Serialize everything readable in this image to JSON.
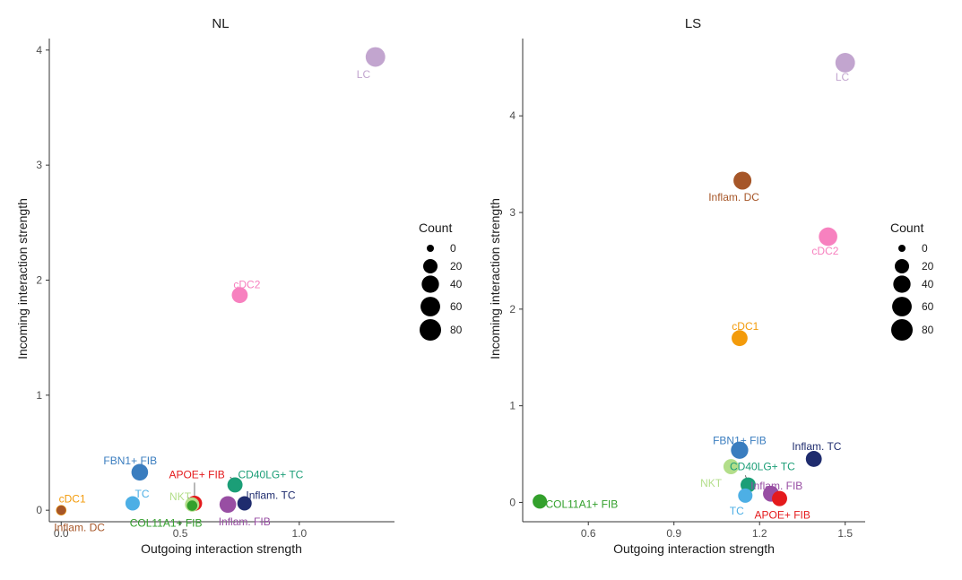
{
  "colors": {
    "cDC1": "#F39B0B",
    "Inflam. DC": "#A65628",
    "TC": "#4DAFE5",
    "FBN1+ FIB": "#3A7DBF",
    "APOE+ FIB": "#E41A1C",
    "NKT": "#B3DE8A",
    "COL11A1+ FIB": "#33A02C",
    "CD40LG+ TC": "#1B9E77",
    "Inflam. FIB": "#984EA3",
    "Inflam. TC": "#1F2C6E",
    "cDC2": "#F781BF",
    "LC": "#C2A5CF"
  },
  "chart_data": [
    {
      "type": "scatter",
      "title": "NL",
      "xlabel": "Outgoing interaction strength",
      "ylabel": "Incoming interaction strength",
      "xlim": [
        -0.05,
        1.4
      ],
      "ylim": [
        -0.1,
        4.1
      ],
      "xticks": [
        0.0,
        0.5,
        1.0
      ],
      "xtick_labels": [
        "0.0",
        "0.5",
        "1.0"
      ],
      "yticks": [
        0,
        1,
        2,
        3,
        4
      ],
      "ytick_labels": [
        "0",
        "1",
        "2",
        "3",
        "4"
      ],
      "points": [
        {
          "name": "cDC1",
          "x": 0.0,
          "y": 0.0,
          "count": 4
        },
        {
          "name": "Inflam. DC",
          "x": 0.0,
          "y": 0.0,
          "count": 2
        },
        {
          "name": "TC",
          "x": 0.3,
          "y": 0.06,
          "count": 20
        },
        {
          "name": "FBN1+ FIB",
          "x": 0.33,
          "y": 0.33,
          "count": 35
        },
        {
          "name": "APOE+ FIB",
          "x": 0.56,
          "y": 0.06,
          "count": 25
        },
        {
          "name": "NKT",
          "x": 0.55,
          "y": 0.05,
          "count": 20
        },
        {
          "name": "COL11A1+ FIB",
          "x": 0.55,
          "y": 0.04,
          "count": 4
        },
        {
          "name": "CD40LG+ TC",
          "x": 0.73,
          "y": 0.22,
          "count": 25
        },
        {
          "name": "Inflam. FIB",
          "x": 0.7,
          "y": 0.05,
          "count": 35
        },
        {
          "name": "Inflam. TC",
          "x": 0.77,
          "y": 0.06,
          "count": 20
        },
        {
          "name": "cDC2",
          "x": 0.75,
          "y": 1.87,
          "count": 30
        },
        {
          "name": "LC",
          "x": 1.32,
          "y": 3.94,
          "count": 60
        }
      ],
      "labels": [
        {
          "name": "cDC1",
          "text": "cDC1",
          "lx": -0.01,
          "ly": 0.1,
          "anchor": "start"
        },
        {
          "name": "Inflam. DC",
          "text": "Inflam. DC",
          "lx": -0.03,
          "ly": -0.15,
          "anchor": "start"
        },
        {
          "name": "TC",
          "text": "TC",
          "lx": 0.34,
          "ly": 0.14,
          "anchor": "middle"
        },
        {
          "name": "FBN1+ FIB",
          "text": "FBN1+ FIB",
          "lx": 0.29,
          "ly": 0.43,
          "anchor": "middle"
        },
        {
          "name": "APOE+ FIB",
          "text": "APOE+ FIB",
          "lx": 0.57,
          "ly": 0.31,
          "anchor": "middle"
        },
        {
          "name": "NKT",
          "text": "NKT",
          "lx": 0.5,
          "ly": 0.12,
          "anchor": "middle"
        },
        {
          "name": "COL11A1+ FIB",
          "text": "COL11A1+ FIB",
          "lx": 0.44,
          "ly": -0.11,
          "anchor": "middle"
        },
        {
          "name": "CD40LG+ TC",
          "text": "CD40LG+ TC",
          "lx": 0.88,
          "ly": 0.31,
          "anchor": "middle"
        },
        {
          "name": "Inflam. FIB",
          "text": "Inflam. FIB",
          "lx": 0.77,
          "ly": -0.1,
          "anchor": "middle"
        },
        {
          "name": "Inflam. TC",
          "text": "Inflam. TC",
          "lx": 0.88,
          "ly": 0.13,
          "anchor": "middle"
        },
        {
          "name": "cDC2",
          "text": "cDC2",
          "lx": 0.78,
          "ly": 1.96,
          "anchor": "middle"
        },
        {
          "name": "LC",
          "text": "LC",
          "lx": 1.27,
          "ly": 3.79,
          "anchor": "middle"
        }
      ],
      "leaders": [
        {
          "x1": 0.56,
          "y1": 0.24,
          "x2": 0.56,
          "y2": 0.08
        },
        {
          "x1": 0.53,
          "y1": 0.12,
          "x2": 0.55,
          "y2": 0.06
        },
        {
          "x1": 0.71,
          "y1": 0.29,
          "x2": 0.73,
          "y2": 0.24
        }
      ]
    },
    {
      "type": "scatter",
      "title": "LS",
      "xlabel": "Outgoing interaction strength",
      "ylabel": "Incoming interaction strength",
      "xlim": [
        0.37,
        1.57
      ],
      "ylim": [
        -0.2,
        4.8
      ],
      "xticks": [
        0.6,
        0.9,
        1.2,
        1.5
      ],
      "xtick_labels": [
        "0.6",
        "0.9",
        "1.2",
        "1.5"
      ],
      "yticks": [
        0,
        1,
        2,
        3,
        4
      ],
      "ytick_labels": [
        "0",
        "1",
        "2",
        "3",
        "4"
      ],
      "points": [
        {
          "name": "COL11A1+ FIB",
          "x": 0.43,
          "y": 0.01,
          "count": 20
        },
        {
          "name": "NKT",
          "x": 1.1,
          "y": 0.37,
          "count": 25
        },
        {
          "name": "FBN1+ FIB",
          "x": 1.13,
          "y": 0.54,
          "count": 40
        },
        {
          "name": "CD40LG+ TC",
          "x": 1.16,
          "y": 0.18,
          "count": 25
        },
        {
          "name": "TC",
          "x": 1.15,
          "y": 0.07,
          "count": 20
        },
        {
          "name": "Inflam. FIB",
          "x": 1.24,
          "y": 0.09,
          "count": 30
        },
        {
          "name": "APOE+ FIB",
          "x": 1.27,
          "y": 0.04,
          "count": 25
        },
        {
          "name": "Inflam. TC",
          "x": 1.39,
          "y": 0.45,
          "count": 30
        },
        {
          "name": "cDC1",
          "x": 1.13,
          "y": 1.7,
          "count": 30
        },
        {
          "name": "Inflam. DC",
          "x": 1.14,
          "y": 3.33,
          "count": 45
        },
        {
          "name": "cDC2",
          "x": 1.44,
          "y": 2.75,
          "count": 50
        },
        {
          "name": "LC",
          "x": 1.5,
          "y": 4.55,
          "count": 60
        }
      ],
      "labels": [
        {
          "name": "COL11A1+ FIB",
          "text": "COL11A1+ FIB",
          "lx": 0.45,
          "ly": -0.02,
          "anchor": "start"
        },
        {
          "name": "NKT",
          "text": "NKT",
          "lx": 1.03,
          "ly": 0.2,
          "anchor": "middle"
        },
        {
          "name": "FBN1+ FIB",
          "text": "FBN1+ FIB",
          "lx": 1.13,
          "ly": 0.64,
          "anchor": "middle"
        },
        {
          "name": "CD40LG+ TC",
          "text": "CD40LG+ TC",
          "lx": 1.21,
          "ly": 0.37,
          "anchor": "middle"
        },
        {
          "name": "TC",
          "text": "TC",
          "lx": 1.12,
          "ly": -0.09,
          "anchor": "middle"
        },
        {
          "name": "Inflam. FIB",
          "text": "Inflam. FIB",
          "lx": 1.26,
          "ly": 0.17,
          "anchor": "middle"
        },
        {
          "name": "APOE+ FIB",
          "text": "APOE+ FIB",
          "lx": 1.28,
          "ly": -0.13,
          "anchor": "middle"
        },
        {
          "name": "Inflam. TC",
          "text": "Inflam. TC",
          "lx": 1.4,
          "ly": 0.58,
          "anchor": "middle"
        },
        {
          "name": "cDC1",
          "text": "cDC1",
          "lx": 1.15,
          "ly": 1.82,
          "anchor": "middle"
        },
        {
          "name": "Inflam. DC",
          "text": "Inflam. DC",
          "lx": 1.11,
          "ly": 3.16,
          "anchor": "middle"
        },
        {
          "name": "cDC2",
          "text": "cDC2",
          "lx": 1.43,
          "ly": 2.6,
          "anchor": "middle"
        },
        {
          "name": "LC",
          "text": "LC",
          "lx": 1.49,
          "ly": 4.4,
          "anchor": "middle"
        }
      ],
      "leaders": [
        {
          "x1": 1.15,
          "y1": 0.28,
          "x2": 1.16,
          "y2": 0.2
        }
      ]
    }
  ],
  "legends": [
    {
      "title": "Count",
      "labels": [
        "0",
        "20",
        "40",
        "60",
        "80"
      ],
      "values": [
        0,
        20,
        40,
        60,
        80
      ]
    },
    {
      "title": "Count",
      "labels": [
        "0",
        "20",
        "40",
        "60",
        "80"
      ],
      "values": [
        0,
        20,
        40,
        60,
        80
      ]
    }
  ]
}
